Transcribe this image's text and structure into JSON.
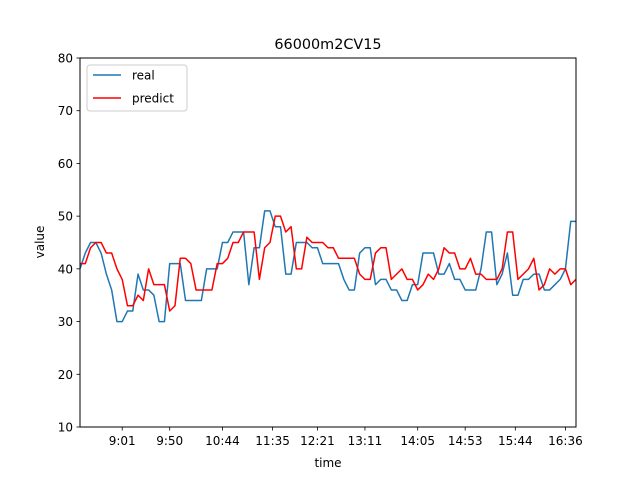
{
  "chart_data": {
    "type": "line",
    "title": "66000m2CV15",
    "xlabel": "time",
    "ylabel": "value",
    "ylim": [
      10,
      80
    ],
    "xlim": [
      0,
      94
    ],
    "yticks": [
      10,
      20,
      30,
      40,
      50,
      60,
      70,
      80
    ],
    "xticks": [
      {
        "x": 8,
        "label": "9:01"
      },
      {
        "x": 17,
        "label": "9:50"
      },
      {
        "x": 27,
        "label": "10:44"
      },
      {
        "x": 36.5,
        "label": "11:35"
      },
      {
        "x": 45,
        "label": "12:21"
      },
      {
        "x": 54,
        "label": "13:11"
      },
      {
        "x": 64,
        "label": "14:05"
      },
      {
        "x": 73,
        "label": "14:53"
      },
      {
        "x": 82.5,
        "label": "15:44"
      },
      {
        "x": 92,
        "label": "16:36"
      }
    ],
    "grid": false,
    "legend": "top-left",
    "series": [
      {
        "name": "real",
        "color": "#1f77b4",
        "x": [
          0,
          1,
          2,
          3,
          4,
          5,
          6,
          7,
          8,
          9,
          10,
          11,
          12,
          13,
          14,
          15,
          16,
          17,
          18,
          19,
          20,
          21,
          22,
          23,
          24,
          25,
          26,
          27,
          28,
          29,
          30,
          31,
          32,
          33,
          34,
          35,
          36,
          37,
          38,
          39,
          40,
          41,
          42,
          43,
          44,
          45,
          46,
          47,
          48,
          49,
          50,
          51,
          52,
          53,
          54,
          55,
          56,
          57,
          58,
          59,
          60,
          61,
          62,
          63,
          64,
          65,
          66,
          67,
          68,
          69,
          70,
          71,
          72,
          73,
          74,
          75,
          76,
          77,
          78,
          79,
          80,
          81,
          82,
          83,
          84,
          85,
          86,
          87,
          88,
          89,
          90,
          91,
          92,
          93,
          94
        ],
        "values": [
          40,
          43,
          45,
          45,
          43,
          39,
          36,
          30,
          30,
          32,
          32,
          39,
          36,
          36,
          35,
          30,
          30,
          41,
          41,
          41,
          34,
          34,
          34,
          34,
          40,
          40,
          40,
          45,
          45,
          47,
          47,
          47,
          37,
          44,
          44,
          51,
          51,
          48,
          48,
          39,
          39,
          45,
          45,
          45,
          44,
          44,
          41,
          41,
          41,
          41,
          38,
          36,
          36,
          43,
          44,
          44,
          37,
          38,
          38,
          36,
          36,
          34,
          34,
          37,
          37,
          43,
          43,
          43,
          39,
          39,
          41,
          38,
          38,
          36,
          36,
          36,
          40,
          47,
          47,
          37,
          39,
          43,
          35,
          35,
          38,
          38,
          39,
          39,
          36,
          36,
          37,
          38,
          40,
          49,
          49
        ]
      },
      {
        "name": "predict",
        "color": "#ff0000",
        "x": [
          0,
          1,
          2,
          3,
          4,
          5,
          6,
          7,
          8,
          9,
          10,
          11,
          12,
          13,
          14,
          15,
          16,
          17,
          18,
          19,
          20,
          21,
          22,
          23,
          24,
          25,
          26,
          27,
          28,
          29,
          30,
          31,
          32,
          33,
          34,
          35,
          36,
          37,
          38,
          39,
          40,
          41,
          42,
          43,
          44,
          45,
          46,
          47,
          48,
          49,
          50,
          51,
          52,
          53,
          54,
          55,
          56,
          57,
          58,
          59,
          60,
          61,
          62,
          63,
          64,
          65,
          66,
          67,
          68,
          69,
          70,
          71,
          72,
          73,
          74,
          75,
          76,
          77,
          78,
          79,
          80,
          81,
          82,
          83,
          84,
          85,
          86,
          87,
          88,
          89,
          90,
          91,
          92,
          93,
          94
        ],
        "values": [
          41,
          41,
          44,
          45,
          45,
          43,
          43,
          40,
          38,
          33,
          33,
          35,
          34,
          40,
          37,
          37,
          37,
          32,
          33,
          42,
          42,
          41,
          36,
          36,
          36,
          36,
          41,
          41,
          42,
          45,
          45,
          47,
          47,
          47,
          38,
          44,
          45,
          50,
          50,
          47,
          48,
          40,
          40,
          46,
          45,
          45,
          45,
          44,
          44,
          42,
          42,
          42,
          42,
          39,
          38,
          38,
          43,
          44,
          44,
          38,
          39,
          40,
          38,
          38,
          36,
          37,
          39,
          38,
          40,
          44,
          43,
          43,
          40,
          40,
          42,
          39,
          39,
          38,
          38,
          38,
          40,
          47,
          47,
          38,
          39,
          40,
          42,
          36,
          37,
          40,
          39,
          40,
          40,
          37,
          38
        ]
      }
    ]
  }
}
